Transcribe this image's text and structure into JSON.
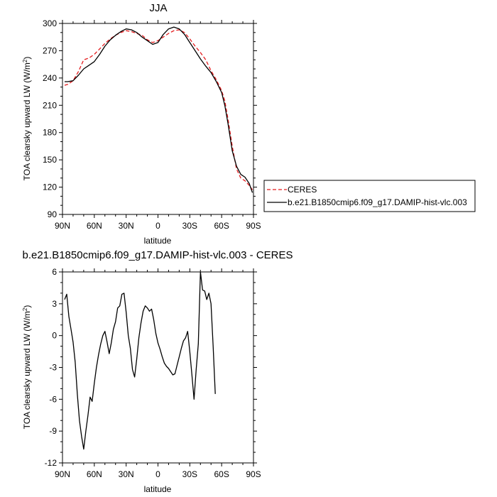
{
  "chart_data": [
    {
      "type": "line",
      "title": "JJA",
      "xlabel": "latitude",
      "ylabel": "TOA clearsky upward LW (W/m²)",
      "ylabel_main": "TOA clearsky upward LW (W/m",
      "ylabel_sup": "2",
      "ylabel_tail": ")",
      "xlim": [
        90,
        -90
      ],
      "ylim": [
        90,
        300
      ],
      "xticks": [
        90,
        60,
        30,
        0,
        -30,
        -60,
        -90
      ],
      "xtick_labels": [
        "90N",
        "60N",
        "30N",
        "0",
        "30S",
        "60S",
        "90S"
      ],
      "yticks": [
        90,
        120,
        150,
        180,
        210,
        240,
        270,
        300
      ],
      "ytick_labels": [
        "90",
        "120",
        "150",
        "180",
        "210",
        "240",
        "270",
        "300"
      ],
      "legend": {
        "placement": "right",
        "entries": [
          "CERES",
          "b.e21.B1850cmip6.f09_g17.DAMIP-hist-vlc.003"
        ]
      },
      "series": [
        {
          "name": "CERES",
          "color": "#e41a1c",
          "dash": true,
          "points": [
            [
              88,
              232
            ],
            [
              85,
              233
            ],
            [
              80,
              237
            ],
            [
              75,
              247
            ],
            [
              70,
              260
            ],
            [
              65,
              262
            ],
            [
              60,
              266
            ],
            [
              55,
              272
            ],
            [
              50,
              278
            ],
            [
              45,
              283
            ],
            [
              40,
              287
            ],
            [
              35,
              290
            ],
            [
              30,
              292
            ],
            [
              25,
              291
            ],
            [
              20,
              289
            ],
            [
              15,
              287
            ],
            [
              10,
              282
            ],
            [
              5,
              279
            ],
            [
              0,
              281
            ],
            [
              -5,
              285
            ],
            [
              -10,
              289
            ],
            [
              -15,
              292
            ],
            [
              -20,
              293
            ],
            [
              -25,
              290
            ],
            [
              -30,
              283
            ],
            [
              -35,
              275
            ],
            [
              -40,
              268
            ],
            [
              -45,
              260
            ],
            [
              -50,
              248
            ],
            [
              -55,
              238
            ],
            [
              -60,
              226
            ],
            [
              -63,
              215
            ],
            [
              -66,
              195
            ],
            [
              -70,
              165
            ],
            [
              -74,
              140
            ],
            [
              -78,
              130
            ],
            [
              -82,
              127
            ],
            [
              -86,
              122
            ],
            [
              -89,
              117
            ]
          ]
        },
        {
          "name": "b.e21.B1850cmip6.f09_g17.DAMIP-hist-vlc.003",
          "color": "#000000",
          "dash": false,
          "points": [
            [
              88,
              236
            ],
            [
              85,
              236
            ],
            [
              80,
              237
            ],
            [
              75,
              243
            ],
            [
              70,
              250
            ],
            [
              65,
              254
            ],
            [
              60,
              258
            ],
            [
              55,
              266
            ],
            [
              50,
              275
            ],
            [
              45,
              282
            ],
            [
              40,
              287
            ],
            [
              35,
              291
            ],
            [
              30,
              294
            ],
            [
              25,
              293
            ],
            [
              20,
              290
            ],
            [
              15,
              285
            ],
            [
              10,
              281
            ],
            [
              5,
              277
            ],
            [
              0,
              279
            ],
            [
              -5,
              288
            ],
            [
              -10,
              294
            ],
            [
              -15,
              296
            ],
            [
              -20,
              294
            ],
            [
              -25,
              288
            ],
            [
              -30,
              279
            ],
            [
              -35,
              270
            ],
            [
              -40,
              261
            ],
            [
              -45,
              253
            ],
            [
              -50,
              246
            ],
            [
              -55,
              236
            ],
            [
              -60,
              224
            ],
            [
              -63,
              210
            ],
            [
              -66,
              190
            ],
            [
              -70,
              160
            ],
            [
              -74,
              143
            ],
            [
              -78,
              134
            ],
            [
              -82,
              131
            ],
            [
              -86,
              124
            ],
            [
              -89,
              114
            ]
          ]
        }
      ]
    },
    {
      "type": "line",
      "title": "b.e21.B1850cmip6.f09_g17.DAMIP-hist-vlc.003 - CERES",
      "xlabel": "latitude",
      "ylabel": "TOA clearsky upward LW (W/m²)",
      "ylabel_main": "TOA clearsky upward LW (W/m",
      "ylabel_sup": "2",
      "ylabel_tail": ")",
      "xlim": [
        90,
        -90
      ],
      "ylim": [
        -12,
        6
      ],
      "xticks": [
        90,
        60,
        30,
        0,
        -30,
        -60,
        -90
      ],
      "xtick_labels": [
        "90N",
        "60N",
        "30N",
        "0",
        "30S",
        "60S",
        "90S"
      ],
      "yticks": [
        -12,
        -9,
        -6,
        -3,
        0,
        3,
        6
      ],
      "ytick_labels": [
        "-12",
        "-9",
        "-6",
        "-3",
        "0",
        "3",
        "6"
      ],
      "series": [
        {
          "color": "#000000",
          "points": [
            [
              88,
              3.4
            ],
            [
              86,
              3.9
            ],
            [
              84,
              1.8
            ],
            [
              82,
              0.6
            ],
            [
              80,
              -0.6
            ],
            [
              78,
              -2.5
            ],
            [
              76,
              -5.5
            ],
            [
              74,
              -8
            ],
            [
              72,
              -9.5
            ],
            [
              70,
              -10.7
            ],
            [
              68,
              -9
            ],
            [
              66,
              -7.5
            ],
            [
              64,
              -5.8
            ],
            [
              62,
              -6.2
            ],
            [
              60,
              -4.5
            ],
            [
              58,
              -3
            ],
            [
              56,
              -1.8
            ],
            [
              54,
              -0.8
            ],
            [
              52,
              0
            ],
            [
              50,
              0.4
            ],
            [
              48,
              -0.6
            ],
            [
              46,
              -1.7
            ],
            [
              44,
              -0.7
            ],
            [
              42,
              0.6
            ],
            [
              40,
              1.3
            ],
            [
              38,
              2.6
            ],
            [
              36,
              2.8
            ],
            [
              34,
              3.9
            ],
            [
              32,
              4
            ],
            [
              30,
              2.2
            ],
            [
              28,
              0
            ],
            [
              26,
              -1.2
            ],
            [
              24,
              -3.2
            ],
            [
              22,
              -3.9
            ],
            [
              20,
              -2.2
            ],
            [
              18,
              -0.2
            ],
            [
              16,
              1.2
            ],
            [
              14,
              2.3
            ],
            [
              12,
              2.8
            ],
            [
              10,
              2.6
            ],
            [
              8,
              2.3
            ],
            [
              6,
              2.5
            ],
            [
              4,
              1.5
            ],
            [
              2,
              0.2
            ],
            [
              0,
              -0.7
            ],
            [
              -2,
              -1.3
            ],
            [
              -4,
              -2
            ],
            [
              -6,
              -2.6
            ],
            [
              -8,
              -2.9
            ],
            [
              -10,
              -3.1
            ],
            [
              -12,
              -3.4
            ],
            [
              -14,
              -3.7
            ],
            [
              -16,
              -3.6
            ],
            [
              -18,
              -2.8
            ],
            [
              -20,
              -2
            ],
            [
              -22,
              -1.2
            ],
            [
              -24,
              -0.5
            ],
            [
              -26,
              -0.2
            ],
            [
              -28,
              0.4
            ],
            [
              -30,
              -1.5
            ],
            [
              -32,
              -3.7
            ],
            [
              -34,
              -6
            ],
            [
              -36,
              -3.2
            ],
            [
              -38,
              -0.8
            ],
            [
              -40,
              6
            ],
            [
              -42,
              4.3
            ],
            [
              -44,
              4.2
            ],
            [
              -46,
              3.4
            ],
            [
              -48,
              4
            ],
            [
              -50,
              3
            ],
            [
              -52,
              -1
            ],
            [
              -54,
              -5.5
            ]
          ]
        }
      ]
    }
  ]
}
